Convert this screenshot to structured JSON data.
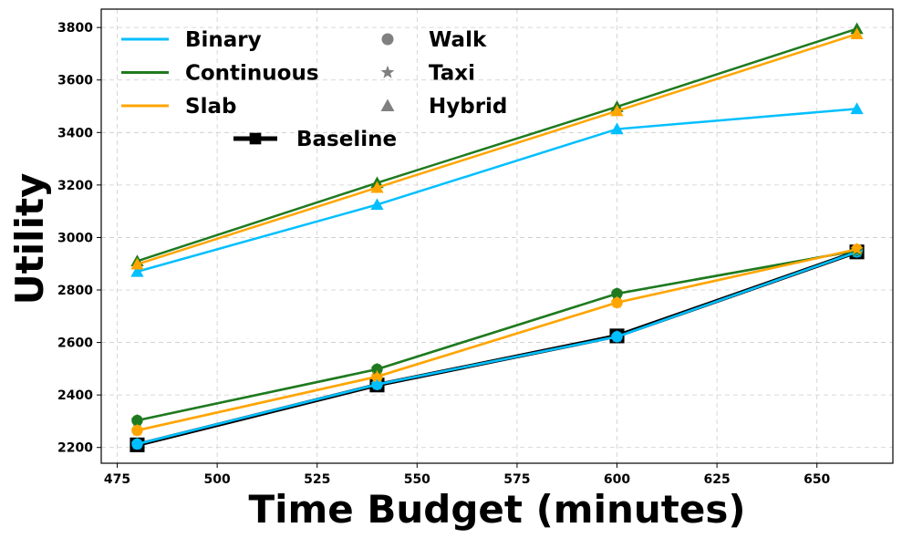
{
  "chart_data": {
    "type": "line",
    "xlabel": "Time Budget (minutes)",
    "ylabel": "Utility",
    "xlim": [
      471,
      669
    ],
    "ylim": [
      2140,
      3870
    ],
    "xticks": [
      475,
      500,
      525,
      550,
      575,
      600,
      625,
      650
    ],
    "yticks": [
      2200,
      2400,
      2600,
      2800,
      3000,
      3200,
      3400,
      3600,
      3800
    ],
    "grid": true,
    "legend_position": "top-left",
    "x": [
      480,
      540,
      600,
      660
    ],
    "series": [
      {
        "name": "Binary",
        "mode": "Walk",
        "color": "#00bfff",
        "marker": "circle",
        "values": [
          2213,
          2440,
          2622,
          2945
        ]
      },
      {
        "name": "Continuous",
        "mode": "Walk",
        "color": "#1f7a1f",
        "marker": "circle",
        "values": [
          2303,
          2498,
          2786,
          2950
        ]
      },
      {
        "name": "Slab",
        "mode": "Walk",
        "color": "#ffa500",
        "marker": "circle",
        "values": [
          2265,
          2470,
          2752,
          2955
        ]
      },
      {
        "name": "Binary",
        "mode": "Taxi",
        "color": "#00bfff",
        "marker": "star",
        "values": [
          2213,
          2440,
          2622,
          2945
        ]
      },
      {
        "name": "Continuous",
        "mode": "Taxi",
        "color": "#1f7a1f",
        "marker": "star",
        "values": [
          2303,
          2498,
          2786,
          2950
        ]
      },
      {
        "name": "Slab",
        "mode": "Taxi",
        "color": "#ffa500",
        "marker": "star",
        "values": [
          2265,
          2470,
          2752,
          2955
        ]
      },
      {
        "name": "Binary",
        "mode": "Hybrid",
        "color": "#00bfff",
        "marker": "triangle",
        "values": [
          2870,
          3125,
          3413,
          3490
        ]
      },
      {
        "name": "Continuous",
        "mode": "Hybrid",
        "color": "#1f7a1f",
        "marker": "triangle",
        "values": [
          2910,
          3208,
          3498,
          3795
        ]
      },
      {
        "name": "Slab",
        "mode": "Hybrid",
        "color": "#ffa500",
        "marker": "triangle",
        "values": [
          2898,
          3190,
          3482,
          3775
        ]
      },
      {
        "name": "Baseline",
        "color": "#000000",
        "marker": "square",
        "values": [
          2210,
          2438,
          2625,
          2945
        ]
      }
    ],
    "legend": {
      "methods": [
        {
          "label": "Binary",
          "color": "#00bfff"
        },
        {
          "label": "Continuous",
          "color": "#1f7a1f"
        },
        {
          "label": "Slab",
          "color": "#ffa500"
        }
      ],
      "modes": [
        {
          "label": "Walk",
          "marker": "circle",
          "color": "#808080"
        },
        {
          "label": "Taxi",
          "marker": "star",
          "color": "#808080"
        },
        {
          "label": "Hybrid",
          "marker": "triangle",
          "color": "#808080"
        }
      ],
      "baseline": {
        "label": "Baseline",
        "color": "#000000"
      }
    }
  }
}
